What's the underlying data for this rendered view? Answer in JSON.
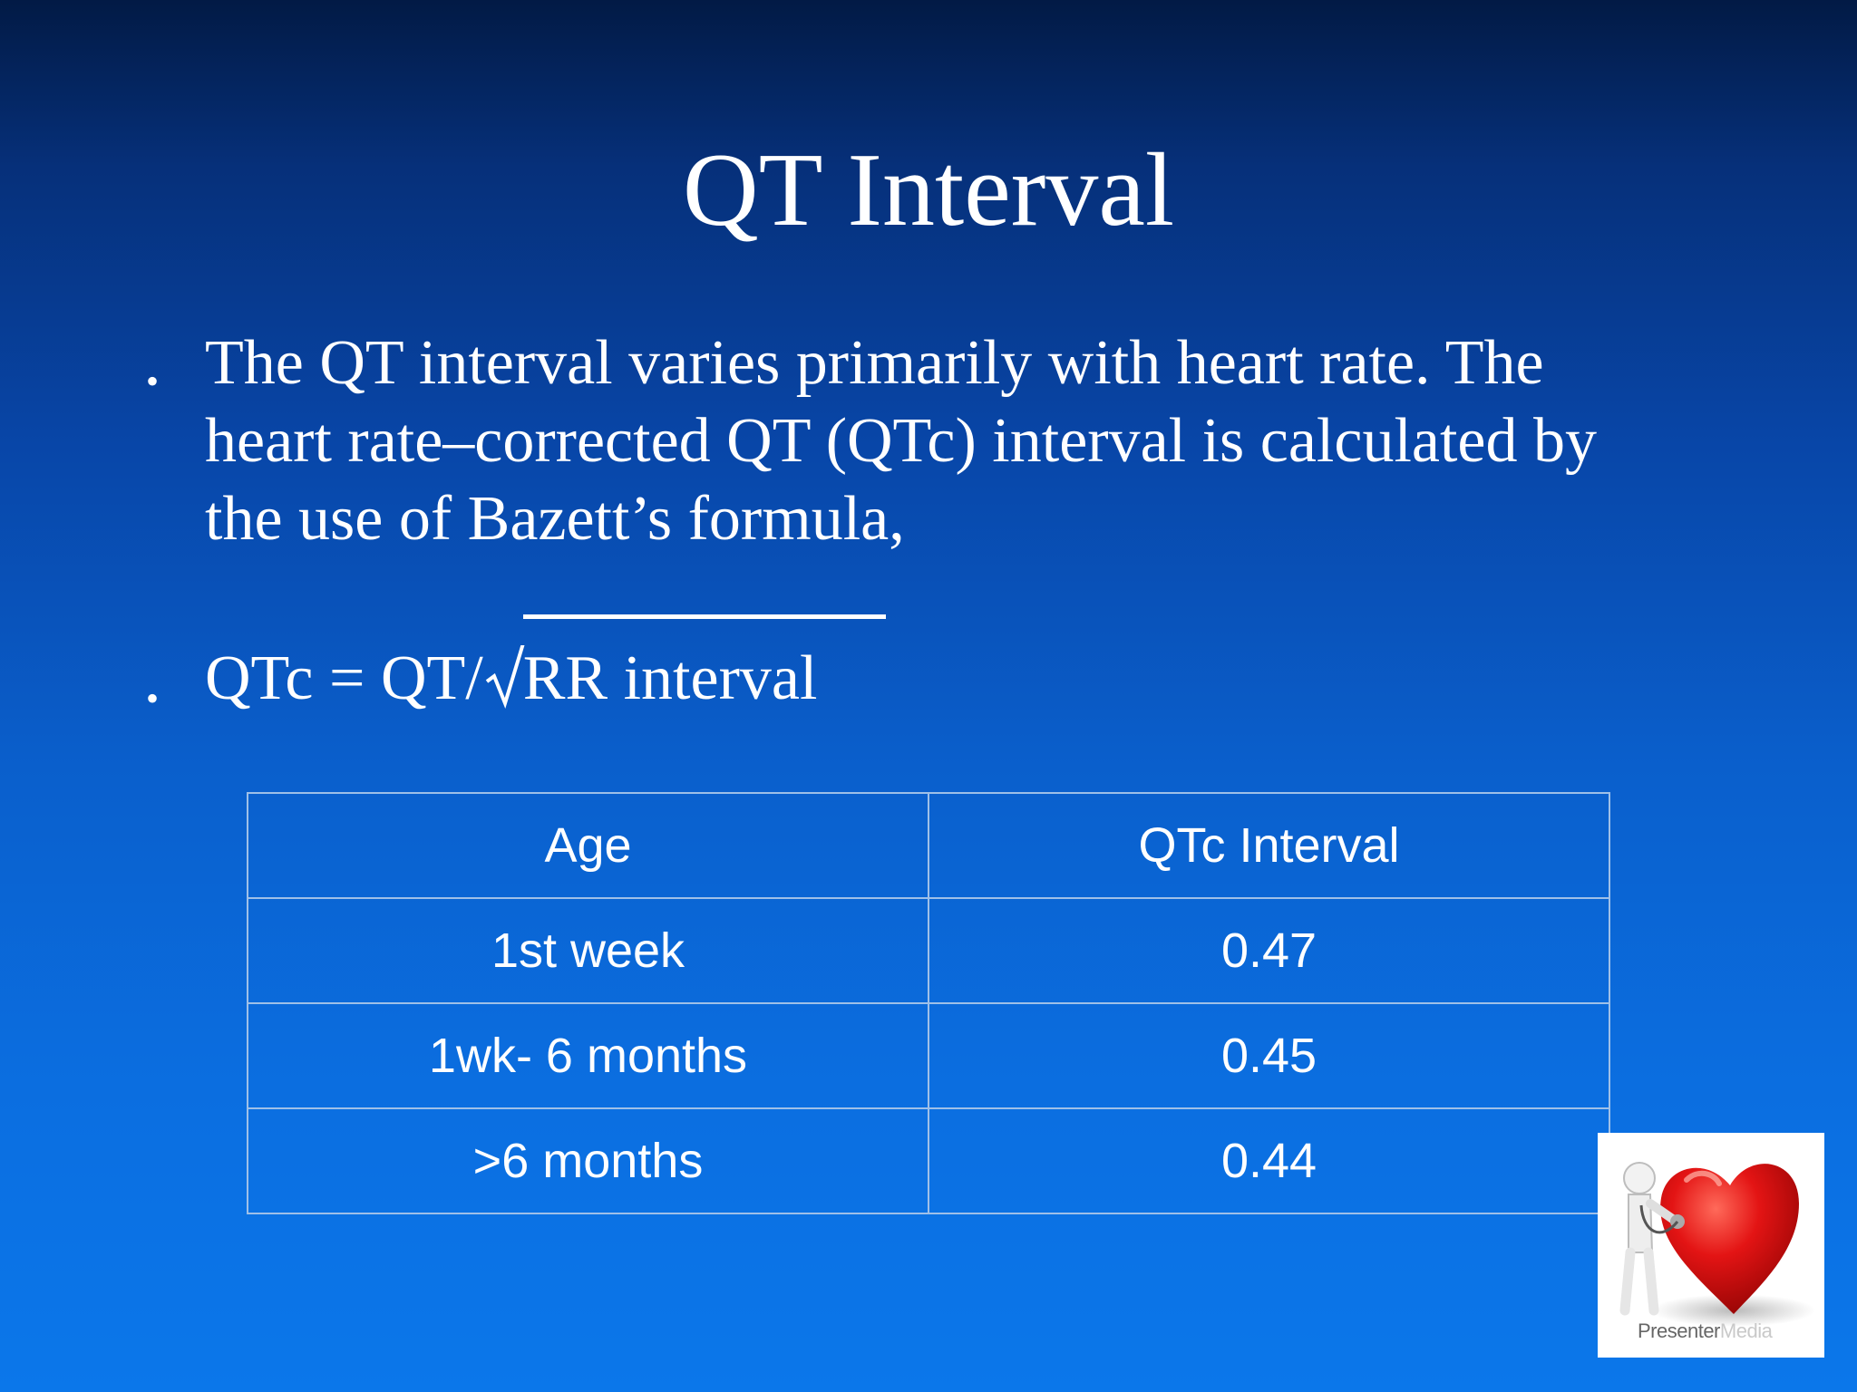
{
  "slide": {
    "title": "QT Interval",
    "bullets": [
      {
        "text": "The QT interval varies primarily with heart rate. The heart rate–corrected QT (QTc) interval is calculated by the use of Bazett’s formula,"
      },
      {
        "formula_prefix": "QTc =  QT/",
        "formula_radicand": "RR interval"
      }
    ]
  },
  "table": {
    "headers": [
      "Age",
      "QTc Interval"
    ],
    "rows": [
      [
        "1st week",
        "0.47"
      ],
      [
        "1wk- 6 months",
        "0.45"
      ],
      [
        ">6 months",
        "0.44"
      ]
    ]
  },
  "logo": {
    "text_main": "Presenter",
    "text_faded": "Media",
    "icon": "heart-stethoscope-figure-icon"
  },
  "colors": {
    "background_top": "#021a45",
    "background_bottom": "#0b77ea",
    "text": "#ffffff",
    "table_border": "#9fc0e8",
    "heart": "#e01010"
  }
}
